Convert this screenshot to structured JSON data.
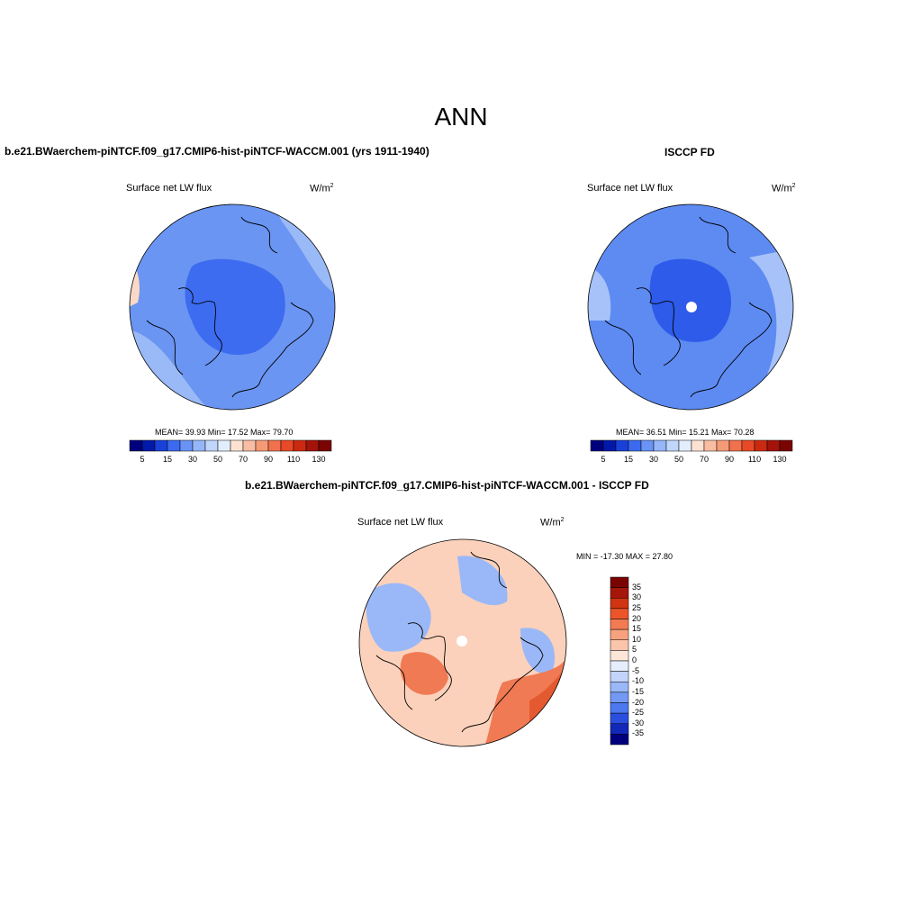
{
  "title": "ANN",
  "panels": {
    "model": {
      "header": "b.e21.BWaerchem-piNTCF.f09_g17.CMIP6-hist-piNTCF-WACCM.001 (yrs 1911-1940)",
      "variable": "Surface net LW flux",
      "units": "W/m",
      "units_exp": "2",
      "stats": "MEAN=  39.93  Min=  17.52  Max=  79.70"
    },
    "obs": {
      "header": "ISCCP FD",
      "variable": "Surface net LW flux",
      "units": "W/m",
      "units_exp": "2",
      "stats": "MEAN=  36.51  Min=  15.21  Max=  70.28"
    },
    "diff": {
      "header": "b.e21.BWaerchem-piNTCF.f09_g17.CMIP6-hist-piNTCF-WACCM.001 - ISCCP FD",
      "variable": "Surface net LW flux",
      "units": "W/m",
      "units_exp": "2",
      "stats": "MIN = -17.30 MAX =  27.80"
    }
  },
  "colorbar_abs": {
    "colors": [
      "#00007f",
      "#0019a8",
      "#1940d8",
      "#3b6af0",
      "#6993f5",
      "#95b7f8",
      "#c0d6fb",
      "#e3eefd",
      "#fde2d2",
      "#f8bda2",
      "#f59a76",
      "#f0714c",
      "#e84a27",
      "#cc2a10",
      "#a3130a",
      "#7a0403"
    ],
    "labels": [
      "5",
      "15",
      "30",
      "50",
      "70",
      "90",
      "110",
      "130"
    ]
  },
  "colorbar_diff": {
    "colors": [
      "#00007f",
      "#1228b8",
      "#2a4fe0",
      "#4c78f0",
      "#7399f4",
      "#9ab8f7",
      "#c2d4fa",
      "#e6eefc",
      "#fde6d8",
      "#fac5ab",
      "#f7a27f",
      "#f27b53",
      "#ec5429",
      "#d13410",
      "#a5170b",
      "#7a0403"
    ],
    "labels": [
      "35",
      "30",
      "25",
      "20",
      "15",
      "10",
      "5",
      "0",
      "-5",
      "-10",
      "-15",
      "-20",
      "-25",
      "-30",
      "-35"
    ]
  },
  "map_fills": {
    "model": {
      "base": "#6a95f2",
      "pole": "#3d6cf0",
      "edge": "#9ab9f7",
      "warm": "#fbd9c6"
    },
    "obs": {
      "base": "#5d8bf2",
      "pole": "#2e5bea",
      "edge": "#a6c2f8",
      "warm": "#fbd9c6"
    },
    "diff": {
      "base": "#fbd1bb",
      "cool": "#9ab8f7",
      "warm": "#f07a53",
      "hot": "#e45a30"
    }
  }
}
